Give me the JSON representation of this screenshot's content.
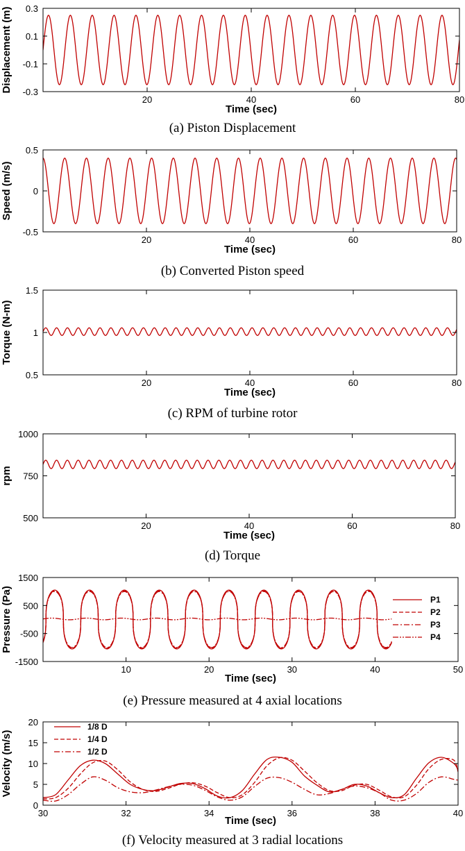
{
  "chart_data": [
    {
      "type": "line",
      "caption": "(a)  Piston  Displacement",
      "xlabel": "Time (sec)",
      "ylabel": "Displacement (m)",
      "xlim": [
        0,
        80
      ],
      "ylim": [
        -0.3,
        0.3
      ],
      "xticks": [
        20,
        40,
        60,
        80
      ],
      "yticks": [
        0.3,
        0.1,
        -0.1,
        -0.3
      ],
      "yticklabels": [
        "0.3",
        "0.1",
        "-0.1",
        "-0.3"
      ],
      "series": [
        {
          "color": "#c00000",
          "dash": "solid",
          "fn": "sine",
          "amplitude": 0.25,
          "period": 4.2,
          "phase_deg": 0,
          "offset": 0
        }
      ]
    },
    {
      "type": "line",
      "caption": "(b)  Converted  Piston  speed",
      "xlabel": "Time (sec)",
      "ylabel": "Speed (m/s)",
      "xlim": [
        0,
        80
      ],
      "ylim": [
        -0.5,
        0.5
      ],
      "xticks": [
        20,
        40,
        60,
        80
      ],
      "yticks": [
        0.5,
        0,
        -0.5
      ],
      "yticklabels": [
        "0.5",
        "0",
        "-0.5"
      ],
      "series": [
        {
          "color": "#c00000",
          "dash": "solid",
          "fn": "sine",
          "amplitude": 0.4,
          "period": 4.2,
          "phase_deg": 90,
          "offset": 0
        }
      ]
    },
    {
      "type": "line",
      "caption": "(c)  RPM  of  turbine  rotor",
      "xlabel": "Time (sec)",
      "ylabel": "Torque (N-m)",
      "xlim": [
        0,
        80
      ],
      "ylim": [
        0.5,
        1.5
      ],
      "xticks": [
        20,
        40,
        60,
        80
      ],
      "yticks": [
        1.5,
        1,
        0.5
      ],
      "yticklabels": [
        "1.5",
        "1",
        "0.5"
      ],
      "series": [
        {
          "color": "#c00000",
          "dash": "solid",
          "fn": "sine",
          "amplitude": 0.045,
          "period": 2.1,
          "phase_deg": 0,
          "offset": 1.01
        }
      ]
    },
    {
      "type": "line",
      "caption": "(d)  Torque",
      "xlabel": "Time (sec)",
      "ylabel": "rpm",
      "xlim": [
        0,
        80
      ],
      "ylim": [
        500,
        1000
      ],
      "xticks": [
        20,
        40,
        60,
        80
      ],
      "yticks": [
        1000,
        750,
        500
      ],
      "yticklabels": [
        "1000",
        "750",
        "500"
      ],
      "series": [
        {
          "color": "#c00000",
          "dash": "solid",
          "fn": "sine",
          "amplitude": 25,
          "period": 2.1,
          "phase_deg": 0,
          "offset": 818
        }
      ]
    },
    {
      "type": "line",
      "caption": "(e)  Pressure  measured  at  4  axial  locations",
      "xlabel": "Time (sec)",
      "ylabel": "Pressure (Pa)",
      "xlim": [
        0,
        50
      ],
      "ylim": [
        -1500,
        1500
      ],
      "xticks": [
        10,
        20,
        30,
        40,
        50
      ],
      "yticks": [
        1500,
        500,
        -500,
        -1500
      ],
      "yticklabels": [
        "1500",
        "500",
        "-500",
        "-1500"
      ],
      "legend_position": "right",
      "series": [
        {
          "name": "P1",
          "color": "#c00000",
          "dash": "solid",
          "fn": "squarewave",
          "amplitude": 1050,
          "period": 4.2,
          "phase_deg": -30,
          "offset": 0,
          "x_end": 42
        },
        {
          "name": "P2",
          "color": "#c00000",
          "dash": "dashed",
          "fn": "squarewave",
          "amplitude": 1020,
          "period": 4.2,
          "phase_deg": -30,
          "offset": 0,
          "x_end": 42
        },
        {
          "name": "P3",
          "color": "#c00000",
          "dash": "dashdot",
          "fn": "squarewave",
          "amplitude": 1000,
          "period": 4.2,
          "phase_deg": -30,
          "offset": 0,
          "x_end": 42
        },
        {
          "name": "P4",
          "color": "#c00000",
          "dash": "dashdotdot",
          "fn": "sine",
          "amplitude": 30,
          "period": 4.2,
          "phase_deg": 0,
          "offset": 20,
          "x_end": 42
        }
      ]
    },
    {
      "type": "line",
      "caption": "(f)  Velocity  measured  at  3  radial  locations",
      "xlabel": "Time (sec)",
      "ylabel": "Velocity (m/s)",
      "xlim": [
        30,
        40
      ],
      "ylim": [
        0,
        20
      ],
      "xticks": [
        30,
        32,
        34,
        36,
        38,
        40
      ],
      "yticks": [
        20,
        15,
        10,
        5,
        0
      ],
      "yticklabels": [
        "20",
        "15",
        "10",
        "5",
        "0"
      ],
      "legend_position": "top-left",
      "series": [
        {
          "name": "1/8 D",
          "color": "#c00000",
          "dash": "solid",
          "fn": "points",
          "x": [
            30.0,
            30.3,
            30.6,
            30.9,
            31.2,
            31.5,
            31.8,
            32.1,
            32.4,
            32.7,
            33.0,
            33.3,
            33.6,
            33.9,
            34.2,
            34.5,
            34.8,
            35.1,
            35.4,
            35.7,
            36.0,
            36.3,
            36.6,
            36.9,
            37.2,
            37.5,
            37.8,
            38.1,
            38.4,
            38.7,
            39.0,
            39.3,
            39.6,
            39.9,
            40.0
          ],
          "y": [
            1.8,
            2.5,
            6.0,
            9.5,
            10.8,
            10.0,
            7.5,
            5.0,
            3.8,
            3.5,
            4.3,
            5.2,
            5.2,
            4.0,
            2.2,
            1.8,
            3.5,
            7.5,
            11.0,
            11.5,
            10.3,
            7.0,
            4.8,
            3.2,
            3.8,
            5.0,
            4.6,
            3.0,
            1.8,
            2.5,
            6.5,
            10.2,
            11.5,
            10.0,
            8.4
          ]
        },
        {
          "name": "1/4 D",
          "color": "#c00000",
          "dash": "dashed",
          "fn": "points",
          "x": [
            30.0,
            30.3,
            30.6,
            30.9,
            31.2,
            31.5,
            31.8,
            32.1,
            32.4,
            32.7,
            33.0,
            33.3,
            33.6,
            33.9,
            34.2,
            34.5,
            34.8,
            35.1,
            35.4,
            35.7,
            36.0,
            36.3,
            36.6,
            36.9,
            37.2,
            37.5,
            37.8,
            38.1,
            38.4,
            38.7,
            39.0,
            39.3,
            39.6,
            39.9,
            40.0
          ],
          "y": [
            1.5,
            1.8,
            4.0,
            7.5,
            10.2,
            10.6,
            8.5,
            5.6,
            3.8,
            3.3,
            4.0,
            5.0,
            5.4,
            4.6,
            3.0,
            1.8,
            2.5,
            5.5,
            9.5,
            11.4,
            10.8,
            8.2,
            5.4,
            3.5,
            3.5,
            4.8,
            5.0,
            3.6,
            2.0,
            2.0,
            4.8,
            8.8,
            11.0,
            10.8,
            8.0
          ]
        },
        {
          "name": "1/2 D",
          "color": "#c00000",
          "dash": "dashdot",
          "fn": "points",
          "x": [
            30.0,
            30.3,
            30.6,
            30.9,
            31.2,
            31.5,
            31.8,
            32.1,
            32.4,
            32.7,
            33.0,
            33.3,
            33.6,
            33.9,
            34.2,
            34.5,
            34.8,
            35.1,
            35.4,
            35.7,
            36.0,
            36.3,
            36.6,
            36.9,
            37.2,
            37.5,
            37.8,
            38.1,
            38.4,
            38.7,
            39.0,
            39.3,
            39.6,
            39.9,
            40.0
          ],
          "y": [
            1.2,
            1.0,
            2.5,
            5.0,
            6.8,
            6.0,
            4.2,
            3.2,
            3.0,
            3.6,
            4.4,
            5.0,
            4.8,
            3.6,
            2.0,
            1.2,
            2.0,
            4.5,
            6.5,
            6.6,
            5.5,
            3.8,
            2.5,
            2.8,
            3.8,
            4.6,
            4.2,
            3.0,
            1.2,
            1.2,
            2.8,
            5.5,
            6.8,
            6.2,
            6.0
          ]
        }
      ]
    }
  ]
}
